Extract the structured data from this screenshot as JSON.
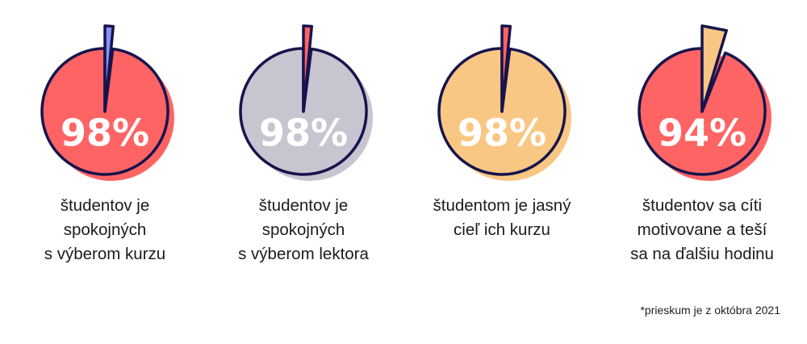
{
  "chart_data": [
    {
      "type": "pie",
      "values": [
        98,
        2
      ],
      "label": "98%",
      "caption": "študentov je\nspokojných\ns výberom kurzu",
      "colors": {
        "main": "#ff6464",
        "shadow": "#ff6464",
        "slice": "#8793ff"
      }
    },
    {
      "type": "pie",
      "values": [
        98,
        2
      ],
      "label": "98%",
      "caption": "študentov je\nspokojných\ns výberom lektora",
      "colors": {
        "main": "#c8c5d0",
        "shadow": "#c8c5d0",
        "slice": "#ff6464"
      }
    },
    {
      "type": "pie",
      "values": [
        98,
        2
      ],
      "label": "98%",
      "caption": "študentom je jasný\ncieľ ich kurzu",
      "colors": {
        "main": "#f9c784",
        "shadow": "#f9c784",
        "slice": "#ff6464"
      }
    },
    {
      "type": "pie",
      "values": [
        94,
        6
      ],
      "label": "94%",
      "caption": "študentov sa cíti\nmotivovane a teší\nsa na ďalšiu hodinu",
      "colors": {
        "main": "#ff6464",
        "shadow": "#ff6464",
        "slice": "#f9c784"
      }
    }
  ],
  "footnote": "*prieskum je z októbra 2021",
  "outline_color": "#17144d"
}
